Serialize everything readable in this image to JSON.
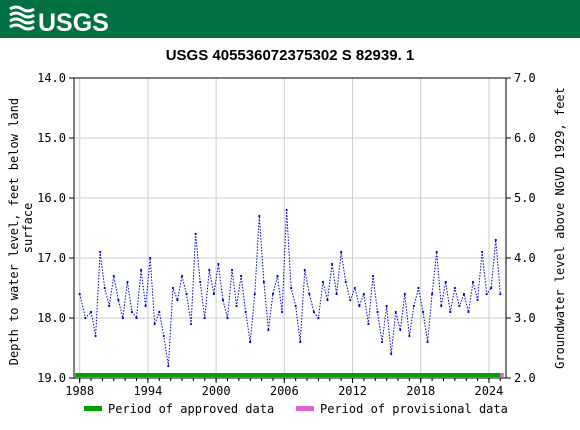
{
  "header": {
    "logo_text": "USGS",
    "band_color": "#006f41"
  },
  "chart_data": {
    "type": "line",
    "title": "USGS 405536072375302 S 82939. 1",
    "ylabel_left": "Depth to water level, feet below land surface",
    "ylabel_right": "Groundwater level above NGVD 1929, feet",
    "x_range": [
      1987.5,
      2025.5
    ],
    "x_ticks": [
      1988,
      1994,
      2000,
      2006,
      2012,
      2018,
      2024
    ],
    "x_tick_labels": [
      "1988",
      "1994",
      "2000",
      "2006",
      "2012",
      "2018",
      "2024"
    ],
    "y_left_range": [
      14.0,
      19.0
    ],
    "y_left_inverted": true,
    "y_left_ticks": [
      14.0,
      15.0,
      16.0,
      17.0,
      18.0,
      19.0
    ],
    "y_left_tick_labels": [
      "14.0",
      "15.0",
      "16.0",
      "17.0",
      "18.0",
      "19.0"
    ],
    "y_right_range": [
      7.0,
      2.0
    ],
    "y_right_ticks": [
      7.0,
      6.0,
      5.0,
      4.0,
      3.0,
      2.0
    ],
    "y_right_tick_labels": [
      "7.0",
      "6.0",
      "5.0",
      "4.0",
      "3.0",
      "2.0"
    ],
    "grid": true,
    "line_color": "#0000cc",
    "line_style": "dotted",
    "series": [
      {
        "x": [
          1988.0,
          1988.5,
          1989.0,
          1989.4,
          1989.8,
          1990.2,
          1990.6,
          1991.0,
          1991.4,
          1991.8,
          1992.2,
          1992.6,
          1993.0,
          1993.4,
          1993.8,
          1994.2,
          1994.6,
          1995.0,
          1995.4,
          1995.8,
          1996.2,
          1996.6,
          1997.0,
          1997.4,
          1997.8,
          1998.2,
          1998.6,
          1999.0,
          1999.4,
          1999.8,
          2000.2,
          2000.6,
          2001.0,
          2001.4,
          2001.8,
          2002.2,
          2002.6,
          2003.0,
          2003.4,
          2003.8,
          2004.2,
          2004.6,
          2005.0,
          2005.4,
          2005.8,
          2006.2,
          2006.6,
          2007.0,
          2007.4,
          2007.8,
          2008.2,
          2008.6,
          2009.0,
          2009.4,
          2009.8,
          2010.2,
          2010.6,
          2011.0,
          2011.4,
          2011.8,
          2012.2,
          2012.6,
          2013.0,
          2013.4,
          2013.8,
          2014.2,
          2014.6,
          2015.0,
          2015.4,
          2015.8,
          2016.2,
          2016.6,
          2017.0,
          2017.4,
          2017.8,
          2018.2,
          2018.6,
          2019.0,
          2019.4,
          2019.8,
          2020.2,
          2020.6,
          2021.0,
          2021.4,
          2021.8,
          2022.2,
          2022.6,
          2023.0,
          2023.4,
          2023.8,
          2024.2,
          2024.6,
          2025.0
        ],
        "y": [
          17.6,
          18.0,
          17.9,
          18.3,
          16.9,
          17.5,
          17.8,
          17.3,
          17.7,
          18.0,
          17.4,
          17.9,
          18.0,
          17.2,
          17.8,
          17.0,
          18.1,
          17.9,
          18.3,
          18.8,
          17.5,
          17.7,
          17.3,
          17.6,
          18.1,
          16.6,
          17.4,
          18.0,
          17.2,
          17.6,
          17.1,
          17.7,
          18.0,
          17.2,
          17.8,
          17.3,
          17.9,
          18.4,
          17.6,
          16.3,
          17.4,
          18.2,
          17.6,
          17.3,
          17.9,
          16.2,
          17.5,
          17.8,
          18.4,
          17.2,
          17.6,
          17.9,
          18.0,
          17.4,
          17.7,
          17.1,
          17.6,
          16.9,
          17.4,
          17.7,
          17.5,
          17.8,
          17.6,
          18.1,
          17.3,
          17.9,
          18.4,
          17.8,
          18.6,
          17.9,
          18.2,
          17.6,
          18.3,
          17.8,
          17.5,
          17.9,
          18.4,
          17.6,
          16.9,
          17.8,
          17.4,
          17.9,
          17.5,
          17.8,
          17.6,
          17.9,
          17.4,
          17.7,
          16.9,
          17.6,
          17.5,
          16.7,
          17.6
        ]
      }
    ],
    "legend": [
      {
        "label": "Period of approved data",
        "color": "#00a000"
      },
      {
        "label": "Period of provisional data",
        "color": "#e060d0"
      }
    ],
    "legend_position": "bottom",
    "approved_period": [
      1987.6,
      2025.0
    ],
    "provisional_period": [
      2025.0,
      2025.3
    ]
  }
}
